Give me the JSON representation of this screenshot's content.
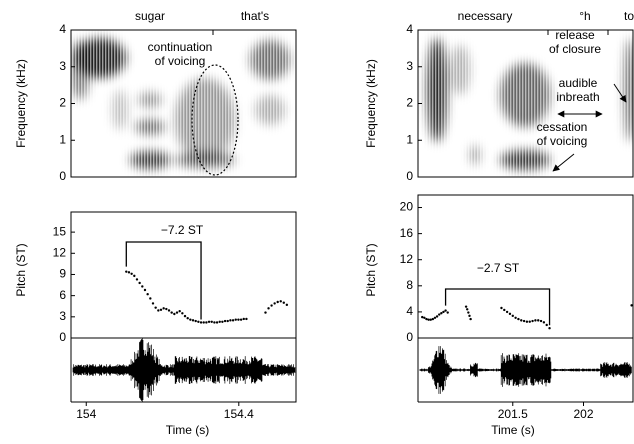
{
  "chart_data": [
    {
      "type": "scatter",
      "spectrogram": {
        "ylabel": "Frequency (kHz)",
        "ylim": [
          0,
          4
        ],
        "yticks": [
          0,
          1,
          2,
          3,
          4
        ],
        "words": [
          "sugar",
          "that's"
        ],
        "annotations": [
          "continuation",
          "of voicing"
        ]
      },
      "ylabel": "Pitch (ST)",
      "ylim": [
        0,
        17
      ],
      "yticks": [
        0,
        3,
        6,
        9,
        12,
        15
      ],
      "annotation": "−7.2 ST",
      "xlabel": "Time (s)",
      "xlim": [
        153.96,
        154.55
      ],
      "xticks": [
        154,
        154.4
      ],
      "color": "#000000",
      "x": [
        154.105,
        154.112,
        154.119,
        154.126,
        154.133,
        154.14,
        154.147,
        154.154,
        154.161,
        154.168,
        154.175,
        154.182,
        154.189,
        154.196,
        154.203,
        154.21,
        154.217,
        154.224,
        154.231,
        154.238,
        154.245,
        154.252,
        154.259,
        154.266,
        154.273,
        154.28,
        154.287,
        154.294,
        154.301,
        154.308,
        154.315,
        154.322,
        154.329,
        154.336,
        154.343,
        154.35,
        154.357,
        154.364,
        154.371,
        154.378,
        154.385,
        154.392,
        154.399,
        154.406,
        154.413,
        154.42,
        154.47,
        154.478,
        154.486,
        154.494,
        154.502,
        154.51,
        154.518,
        154.526
      ],
      "values": [
        9.4,
        9.3,
        9.1,
        8.8,
        8.3,
        7.8,
        7.3,
        6.8,
        6.2,
        5.6,
        4.9,
        4.3,
        3.9,
        4.0,
        4.2,
        4.1,
        3.9,
        3.6,
        3.4,
        3.6,
        3.8,
        3.5,
        3.1,
        2.8,
        2.6,
        2.5,
        2.4,
        2.3,
        2.2,
        2.2,
        2.2,
        2.3,
        2.3,
        2.2,
        2.2,
        2.3,
        2.3,
        2.4,
        2.4,
        2.5,
        2.5,
        2.6,
        2.6,
        2.6,
        2.7,
        2.7,
        3.6,
        4.2,
        4.6,
        4.9,
        5.1,
        5.2,
        5.0,
        4.7
      ]
    },
    {
      "type": "scatter",
      "spectrogram": {
        "ylabel": "Frequency (kHz)",
        "ylim": [
          0,
          4
        ],
        "yticks": [
          0,
          1,
          2,
          3,
          4
        ],
        "words": [
          "necessary",
          "°h",
          "to"
        ],
        "annotations": [
          "release",
          "of closure",
          "audible",
          "inbreath",
          "cessation",
          "of voicing"
        ]
      },
      "ylabel": "Pitch (ST)",
      "ylim": [
        0,
        21
      ],
      "yticks": [
        0,
        4,
        8,
        12,
        16,
        20
      ],
      "annotation": "−2.7 ST",
      "xlabel": "Time (s)",
      "xlim": [
        200.83,
        202.35
      ],
      "xticks": [
        201.5,
        202
      ],
      "color": "#000000",
      "x": [
        200.86,
        200.875,
        200.89,
        200.905,
        200.92,
        200.935,
        200.95,
        200.965,
        200.98,
        200.995,
        201.01,
        201.025,
        201.04,
        201.17,
        201.178,
        201.186,
        201.194,
        201.202,
        201.42,
        201.44,
        201.46,
        201.48,
        201.5,
        201.52,
        201.54,
        201.56,
        201.58,
        201.6,
        201.62,
        201.64,
        201.66,
        201.68,
        201.7,
        201.72,
        201.74,
        201.76,
        202.34
      ],
      "values": [
        3.2,
        3.1,
        2.9,
        2.8,
        2.8,
        2.9,
        3.1,
        3.3,
        3.6,
        3.8,
        4.0,
        4.2,
        3.9,
        4.8,
        4.4,
        3.9,
        3.4,
        2.9,
        4.6,
        4.3,
        4.0,
        3.7,
        3.4,
        3.1,
        2.9,
        2.7,
        2.6,
        2.5,
        2.5,
        2.6,
        2.7,
        2.7,
        2.6,
        2.4,
        2.0,
        1.5,
        5.0
      ]
    }
  ]
}
